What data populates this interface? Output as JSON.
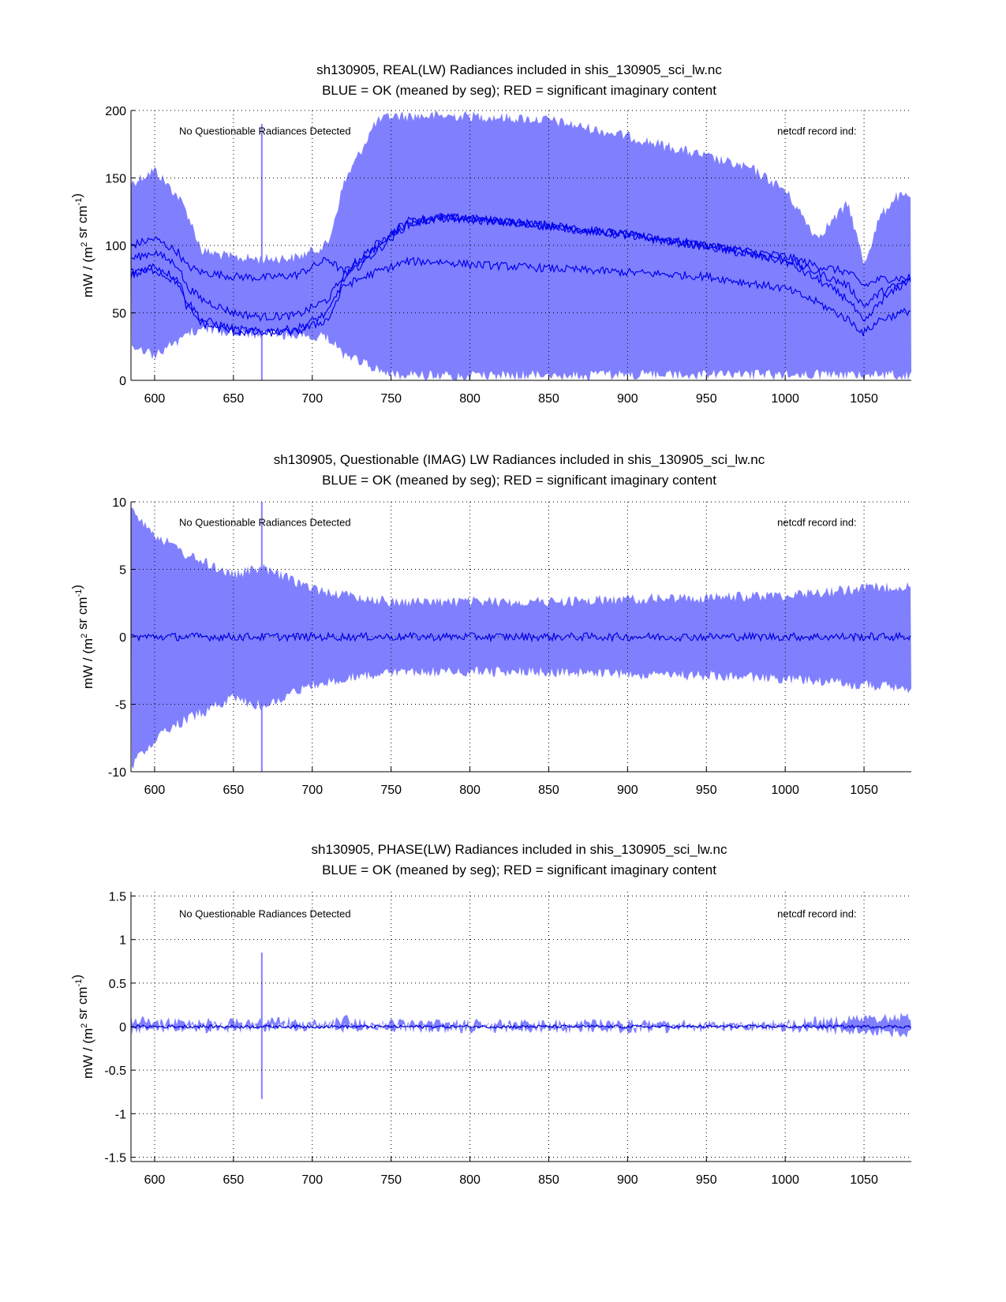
{
  "colors": {
    "envelope": "#8080ff",
    "mean": "#0000ee",
    "axis": "#000000",
    "grid": "#000000",
    "background": "#ffffff"
  },
  "chart_data": [
    {
      "type": "line",
      "title": "sh130905, REAL(LW) Radiances included in shis_130905_sci_lw.nc",
      "subtitle": "BLUE = OK (meaned by seg); RED = significant imaginary content",
      "ylabel": "mW / (m2 sr cm-1)",
      "ylabel_parts": {
        "base": "mW / (m",
        "sup1": "2",
        "mid": " sr cm",
        "sup2": "-1",
        "end": ")"
      },
      "xlim": [
        585,
        1080
      ],
      "ylim": [
        0,
        200
      ],
      "xticks": [
        600,
        650,
        700,
        750,
        800,
        850,
        900,
        950,
        1000,
        1050
      ],
      "yticks": [
        0,
        50,
        100,
        150,
        200
      ],
      "ytick_labels": [
        "0",
        "50",
        "100",
        "150",
        "200"
      ],
      "grid": true,
      "annotations": [
        {
          "text": "No Questionable Radiances Detected",
          "x": 675,
          "y": 185
        },
        {
          "text": "netcdf record ind:",
          "x": 1000,
          "y": 185
        }
      ],
      "series": [
        {
          "name": "envelope upper (OK range max)",
          "x": [
            585,
            600,
            615,
            620,
            630,
            650,
            668,
            690,
            710,
            720,
            740,
            750,
            760,
            780,
            800,
            850,
            900,
            950,
            980,
            1000,
            1020,
            1040,
            1050,
            1060,
            1070,
            1080
          ],
          "y": [
            150,
            160,
            140,
            130,
            100,
            95,
            94,
            95,
            105,
            150,
            195,
            200,
            200,
            200,
            200,
            197,
            185,
            170,
            160,
            145,
            110,
            135,
            90,
            125,
            140,
            140
          ]
        },
        {
          "name": "envelope lower (OK range min)",
          "x": [
            585,
            600,
            615,
            620,
            630,
            650,
            668,
            690,
            710,
            720,
            740,
            750,
            760,
            800,
            1000,
            1080
          ],
          "y": [
            20,
            15,
            25,
            30,
            35,
            30,
            30,
            30,
            28,
            15,
            5,
            0,
            0,
            0,
            0,
            0
          ]
        },
        {
          "name": "mean segment 1",
          "x": [
            585,
            600,
            615,
            620,
            630,
            650,
            668,
            690,
            710,
            720,
            740,
            760,
            780,
            800,
            850,
            900,
            950,
            1000,
            1020,
            1040,
            1050,
            1060,
            1080
          ],
          "y": [
            100,
            105,
            95,
            85,
            80,
            77,
            76,
            78,
            90,
            80,
            100,
            118,
            121,
            120,
            115,
            108,
            100,
            92,
            85,
            80,
            70,
            75,
            76
          ]
        },
        {
          "name": "mean segment 2",
          "x": [
            585,
            600,
            615,
            620,
            630,
            650,
            668,
            690,
            710,
            720,
            740,
            760,
            780,
            800,
            850,
            900,
            950,
            1000,
            1020,
            1040,
            1050,
            1060,
            1080
          ],
          "y": [
            90,
            95,
            85,
            70,
            60,
            50,
            47,
            48,
            60,
            78,
            98,
            117,
            121,
            120,
            115,
            108,
            100,
            90,
            80,
            70,
            55,
            65,
            75
          ]
        },
        {
          "name": "mean segment 3",
          "x": [
            585,
            600,
            615,
            620,
            630,
            650,
            668,
            690,
            710,
            720,
            740,
            760,
            780,
            800,
            850,
            900,
            950,
            1000,
            1020,
            1040,
            1050,
            1060,
            1080
          ],
          "y": [
            80,
            85,
            75,
            60,
            45,
            38,
            36,
            38,
            50,
            75,
            95,
            115,
            120,
            119,
            114,
            107,
            99,
            88,
            75,
            60,
            42,
            58,
            76
          ]
        },
        {
          "name": "mean segment 4",
          "x": [
            585,
            600,
            615,
            620,
            630,
            650,
            668,
            690,
            710,
            720,
            740,
            760,
            780,
            800,
            850,
            900,
            950,
            1000,
            1020,
            1040,
            1050,
            1060,
            1080
          ],
          "y": [
            78,
            82,
            72,
            55,
            42,
            36,
            35,
            36,
            45,
            70,
            80,
            88,
            88,
            86,
            83,
            80,
            77,
            68,
            58,
            45,
            35,
            45,
            52
          ]
        }
      ]
    },
    {
      "type": "line",
      "title": "sh130905, Questionable (IMAG) LW Radiances included in shis_130905_sci_lw.nc",
      "subtitle": "BLUE = OK (meaned by seg); RED = significant imaginary content",
      "ylabel": "mW / (m2 sr cm-1)",
      "ylabel_parts": {
        "base": "mW / (m",
        "sup1": "2",
        "mid": " sr cm",
        "sup2": "-1",
        "end": ")"
      },
      "xlim": [
        585,
        1080
      ],
      "ylim": [
        -10,
        10
      ],
      "xticks": [
        600,
        650,
        700,
        750,
        800,
        850,
        900,
        950,
        1000,
        1050
      ],
      "yticks": [
        -10,
        -5,
        0,
        5,
        10
      ],
      "ytick_labels": [
        "-10",
        "-5",
        "0",
        "5",
        "10"
      ],
      "grid": true,
      "annotations": [
        {
          "text": "No Questionable Radiances Detected",
          "x": 675,
          "y": 8.5
        },
        {
          "text": "netcdf record ind:",
          "x": 1000,
          "y": 8.5
        }
      ],
      "series": [
        {
          "name": "envelope upper",
          "x": [
            585,
            600,
            620,
            650,
            668,
            700,
            720,
            750,
            800,
            850,
            900,
            950,
            1000,
            1050,
            1080
          ],
          "y": [
            10,
            8,
            6.5,
            5,
            5.5,
            4,
            3.5,
            3,
            3,
            3,
            3.2,
            3.3,
            3.5,
            4,
            4.2
          ]
        },
        {
          "name": "envelope lower",
          "x": [
            585,
            600,
            620,
            650,
            668,
            700,
            720,
            750,
            800,
            850,
            900,
            950,
            1000,
            1050,
            1080
          ],
          "y": [
            -10,
            -8,
            -6.5,
            -5,
            -5.5,
            -4,
            -3.5,
            -3,
            -3,
            -3,
            -3.2,
            -3.3,
            -3.5,
            -4,
            -4.2
          ]
        },
        {
          "name": "mean",
          "x": [
            585,
            1080
          ],
          "y": [
            0,
            0
          ]
        }
      ]
    },
    {
      "type": "line",
      "title": "sh130905, PHASE(LW) Radiances included in shis_130905_sci_lw.nc",
      "subtitle": "BLUE = OK (meaned by seg); RED = significant imaginary content",
      "ylabel": "mW / (m2 sr cm-1)",
      "ylabel_parts": {
        "base": "mW / (m",
        "sup1": "2",
        "mid": " sr cm",
        "sup2": "-1",
        "end": ")"
      },
      "xlim": [
        585,
        1080
      ],
      "ylim": [
        -1.55,
        1.55
      ],
      "xticks": [
        600,
        650,
        700,
        750,
        800,
        850,
        900,
        950,
        1000,
        1050
      ],
      "yticks": [
        -1.5,
        -1,
        -0.5,
        0,
        0.5,
        1,
        1.5
      ],
      "ytick_labels": [
        "-1.5",
        "-1",
        "-0.5",
        "0",
        "0.5",
        "1",
        "1.5"
      ],
      "grid": true,
      "annotations": [
        {
          "text": "No Questionable Radiances Detected",
          "x": 675,
          "y": 1.3
        },
        {
          "text": "netcdf record ind:",
          "x": 1000,
          "y": 1.3
        }
      ],
      "series": [
        {
          "name": "envelope upper",
          "x": [
            585,
            600,
            620,
            650,
            668,
            690,
            710,
            720,
            750,
            800,
            900,
            950,
            1000,
            1050,
            1080
          ],
          "y": [
            0.15,
            0.1,
            0.12,
            0.1,
            0.12,
            0.12,
            0.08,
            0.15,
            0.04,
            0.04,
            0.04,
            0.05,
            0.1,
            0.15,
            0.17
          ]
        },
        {
          "name": "envelope lower",
          "x": [
            585,
            600,
            620,
            650,
            668,
            690,
            710,
            720,
            750,
            800,
            900,
            950,
            1000,
            1050,
            1080
          ],
          "y": [
            -0.1,
            -0.08,
            -0.08,
            -0.08,
            -0.08,
            -0.06,
            -0.05,
            -0.08,
            -0.03,
            -0.03,
            -0.03,
            -0.04,
            -0.07,
            -0.12,
            -0.13
          ]
        },
        {
          "name": "mean",
          "x": [
            585,
            1080
          ],
          "y": [
            0.0,
            0.0
          ]
        }
      ]
    }
  ]
}
